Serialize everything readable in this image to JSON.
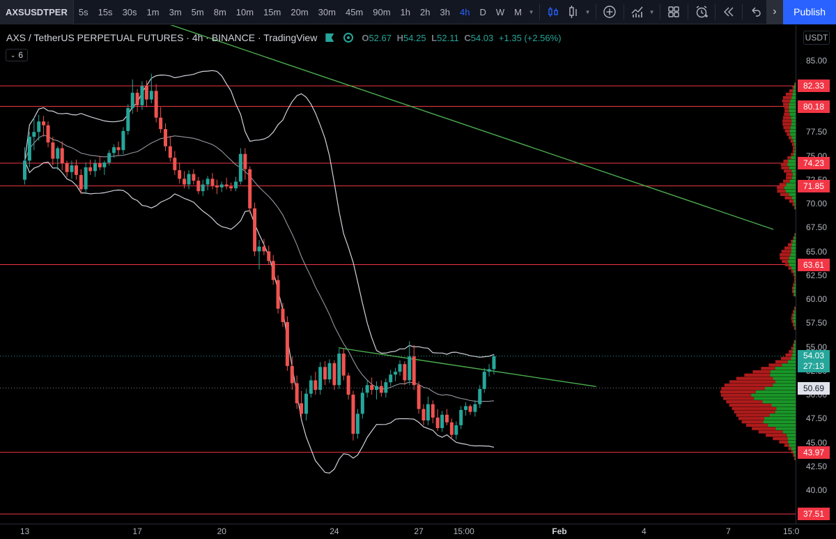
{
  "toolbar": {
    "symbol": "AXSUSDTPER",
    "intervals": [
      "5s",
      "15s",
      "30s",
      "1m",
      "3m",
      "5m",
      "8m",
      "10m",
      "15m",
      "20m",
      "30m",
      "45m",
      "90m",
      "1h",
      "2h",
      "3h",
      "4h",
      "D",
      "W",
      "M"
    ],
    "active_interval": "4h",
    "publish_label": "Publish",
    "icons": [
      "candles-icon",
      "bars-icon",
      "add-indicator-icon",
      "indicators-icon",
      "layout-grid-icon",
      "alert-clock-icon",
      "replay-icon",
      "undo-icon",
      "collapse-icon"
    ]
  },
  "legend": {
    "title": "AXS / TetherUS PERPETUAL FUTURES · 4h · BINANCE · TradingView",
    "o_label": "O",
    "o": "52.67",
    "h_label": "H",
    "h": "54.25",
    "l_label": "L",
    "l": "52.11",
    "c_label": "C",
    "c": "54.03",
    "change": "+1.35 (+2.56%)",
    "indicator_count": "6"
  },
  "price_scale": {
    "currency": "USDT",
    "ticks": [
      "85.00",
      "77.50",
      "75.00",
      "72.50",
      "70.00",
      "67.50",
      "65.00",
      "62.50",
      "60.00",
      "57.50",
      "55.00",
      "52.50",
      "50.00",
      "47.50",
      "45.00",
      "42.50",
      "40.00"
    ],
    "levels": [
      {
        "value": "82.33",
        "price": 82.33,
        "color": "#f23645"
      },
      {
        "value": "80.18",
        "price": 80.18,
        "color": "#f23645"
      },
      {
        "value": "74.23",
        "price": 74.23,
        "color": "#f23645"
      },
      {
        "value": "71.85",
        "price": 71.85,
        "color": "#f23645"
      },
      {
        "value": "63.61",
        "price": 63.61,
        "color": "#f23645"
      },
      {
        "value": "43.97",
        "price": 43.97,
        "color": "#f23645"
      },
      {
        "value": "37.51",
        "price": 37.51,
        "color": "#f23645"
      }
    ],
    "last_price": {
      "value": "54.03",
      "countdown": "27:13",
      "price": 54.03,
      "color": "#26a69a"
    },
    "poc": {
      "value": "50.69",
      "price": 50.69
    }
  },
  "time_scale": {
    "ticks": [
      {
        "label": "13",
        "day": 0,
        "bold": false
      },
      {
        "label": "17",
        "day": 4,
        "bold": false
      },
      {
        "label": "20",
        "day": 7,
        "bold": false
      },
      {
        "label": "24",
        "day": 11,
        "bold": false
      },
      {
        "label": "27",
        "day": 14,
        "bold": false
      },
      {
        "label": "15:00",
        "day": 15.6,
        "bold": false
      },
      {
        "label": "Feb",
        "day": 19,
        "bold": true
      },
      {
        "label": "4",
        "day": 22,
        "bold": false
      },
      {
        "label": "7",
        "day": 25,
        "bold": false
      },
      {
        "label": "15:0",
        "day": 26.2,
        "bold": false
      }
    ]
  },
  "colors": {
    "up": "#26a69a",
    "down": "#ef5350",
    "level": "#f23645",
    "trend": "#4caf50",
    "band": "#d1d4dc",
    "bg": "#000000"
  },
  "chart_data": {
    "type": "candlestick",
    "symbol": "AXS / TetherUS PERPETUAL FUTURES",
    "timeframe": "4h",
    "x_unit": "days since first tick label (13)",
    "ylim": [
      36.5,
      88.6
    ],
    "candles": [
      [
        0,
        72.5,
        75.9,
        72.0,
        74.5
      ],
      [
        0.17,
        74.5,
        77.5,
        73.8,
        77.0
      ],
      [
        0.33,
        77.0,
        79.0,
        75.6,
        77.5
      ],
      [
        0.5,
        77.5,
        79.3,
        76.6,
        78.6
      ],
      [
        0.67,
        78.6,
        79.2,
        77.0,
        78.2
      ],
      [
        0.83,
        78.2,
        78.6,
        75.9,
        76.4
      ],
      [
        1.0,
        76.4,
        77.0,
        74.0,
        74.7
      ],
      [
        1.17,
        74.7,
        76.0,
        73.5,
        75.8
      ],
      [
        1.33,
        75.8,
        76.5,
        73.5,
        74.2
      ],
      [
        1.5,
        74.2,
        74.5,
        72.8,
        73.3
      ],
      [
        1.67,
        73.3,
        74.5,
        72.6,
        74.0
      ],
      [
        1.83,
        74.0,
        74.6,
        72.5,
        73.0
      ],
      [
        2.0,
        73.0,
        73.6,
        71.0,
        71.5
      ],
      [
        2.17,
        71.5,
        74.3,
        71.0,
        73.8
      ],
      [
        2.33,
        73.8,
        74.6,
        73.0,
        73.4
      ],
      [
        2.5,
        73.4,
        74.6,
        72.8,
        74.2
      ],
      [
        2.67,
        74.2,
        75.0,
        73.5,
        73.8
      ],
      [
        2.83,
        73.8,
        74.5,
        73.0,
        74.3
      ],
      [
        3.0,
        74.3,
        75.6,
        74.0,
        75.3
      ],
      [
        3.17,
        75.3,
        76.2,
        74.8,
        75.9
      ],
      [
        3.33,
        75.9,
        76.5,
        75.1,
        75.6
      ],
      [
        3.5,
        75.6,
        78.0,
        75.2,
        77.6
      ],
      [
        3.67,
        77.6,
        80.4,
        77.2,
        80.0
      ],
      [
        3.83,
        80.0,
        83.0,
        79.4,
        81.6
      ],
      [
        4.0,
        81.6,
        82.0,
        79.6,
        80.3
      ],
      [
        4.17,
        80.3,
        82.8,
        79.8,
        82.3
      ],
      [
        4.33,
        82.3,
        82.9,
        80.1,
        80.9
      ],
      [
        4.5,
        80.9,
        83.6,
        80.5,
        81.8
      ],
      [
        4.67,
        81.8,
        82.5,
        78.5,
        79.0
      ],
      [
        4.83,
        79.0,
        80.1,
        77.4,
        77.8
      ],
      [
        5.0,
        77.8,
        78.4,
        75.5,
        76.0
      ],
      [
        5.17,
        76.0,
        77.1,
        74.4,
        74.8
      ],
      [
        5.33,
        74.8,
        75.5,
        73.0,
        73.5
      ],
      [
        5.5,
        73.5,
        74.3,
        72.1,
        72.6
      ],
      [
        5.67,
        72.6,
        73.4,
        71.6,
        72.0
      ],
      [
        5.83,
        72.0,
        73.5,
        71.5,
        73.1
      ],
      [
        6.0,
        73.1,
        73.6,
        72.0,
        72.4
      ],
      [
        6.17,
        72.4,
        72.8,
        71.0,
        71.3
      ],
      [
        6.33,
        71.3,
        72.5,
        70.8,
        72.0
      ],
      [
        6.5,
        72.0,
        72.9,
        71.4,
        72.6
      ],
      [
        6.67,
        72.6,
        73.2,
        71.5,
        71.9
      ],
      [
        6.83,
        71.9,
        72.5,
        71.0,
        71.7
      ],
      [
        7.0,
        71.7,
        72.3,
        71.2,
        72.0
      ],
      [
        7.17,
        72.0,
        72.7,
        71.5,
        71.8
      ],
      [
        7.33,
        71.8,
        72.2,
        71.3,
        71.6
      ],
      [
        7.5,
        71.6,
        72.8,
        71.3,
        72.3
      ],
      [
        7.67,
        72.3,
        75.8,
        72.0,
        75.2
      ],
      [
        7.83,
        75.2,
        75.8,
        72.5,
        73.6
      ],
      [
        8.0,
        73.6,
        73.9,
        69.0,
        69.5
      ],
      [
        8.17,
        69.5,
        70.1,
        64.5,
        65.0
      ],
      [
        8.33,
        65.0,
        66.2,
        63.1,
        65.5
      ],
      [
        8.5,
        65.5,
        66.3,
        64.6,
        65.0
      ],
      [
        8.67,
        65.0,
        65.6,
        63.6,
        64.0
      ],
      [
        8.83,
        64.0,
        64.6,
        61.5,
        62.0
      ],
      [
        9.0,
        62.0,
        62.5,
        58.5,
        59.0
      ],
      [
        9.17,
        59.0,
        59.6,
        57.1,
        57.6
      ],
      [
        9.33,
        57.6,
        58.2,
        52.5,
        53.0
      ],
      [
        9.5,
        53.0,
        54.0,
        50.5,
        51.2
      ],
      [
        9.67,
        51.2,
        52.0,
        48.5,
        49.1
      ],
      [
        9.83,
        49.1,
        50.4,
        47.5,
        48.0
      ],
      [
        10.0,
        48.0,
        50.6,
        47.3,
        50.1
      ],
      [
        10.17,
        50.1,
        52.0,
        49.7,
        51.5
      ],
      [
        10.33,
        51.5,
        52.4,
        50.0,
        50.5
      ],
      [
        10.5,
        50.5,
        53.4,
        50.0,
        52.9
      ],
      [
        10.67,
        52.9,
        53.5,
        51.0,
        51.6
      ],
      [
        10.83,
        51.6,
        53.7,
        51.2,
        53.3
      ],
      [
        11.0,
        53.3,
        53.6,
        50.5,
        51.0
      ],
      [
        11.17,
        51.0,
        54.8,
        50.6,
        54.3
      ],
      [
        11.33,
        54.3,
        54.8,
        51.5,
        52.0
      ],
      [
        11.5,
        52.0,
        52.3,
        49.5,
        50.0
      ],
      [
        11.67,
        50.0,
        50.4,
        45.2,
        45.9
      ],
      [
        11.83,
        45.9,
        48.5,
        45.4,
        48.0
      ],
      [
        12.0,
        48.0,
        50.7,
        47.5,
        50.2
      ],
      [
        12.17,
        50.2,
        51.5,
        49.7,
        51.0
      ],
      [
        12.33,
        51.0,
        51.8,
        50.0,
        50.5
      ],
      [
        12.5,
        50.5,
        51.4,
        49.5,
        50.9
      ],
      [
        12.67,
        50.9,
        51.5,
        49.8,
        50.2
      ],
      [
        12.83,
        50.2,
        51.7,
        49.7,
        51.3
      ],
      [
        13.0,
        51.3,
        52.6,
        50.9,
        52.1
      ],
      [
        13.17,
        52.1,
        52.8,
        51.4,
        52.4
      ],
      [
        13.33,
        52.4,
        53.6,
        52.0,
        53.2
      ],
      [
        13.5,
        53.2,
        53.5,
        51.0,
        51.5
      ],
      [
        13.67,
        51.5,
        55.6,
        51.0,
        54.0
      ],
      [
        13.83,
        54.0,
        55.2,
        50.5,
        51.0
      ],
      [
        14.0,
        51.0,
        51.4,
        48.0,
        48.5
      ],
      [
        14.17,
        48.5,
        49.0,
        46.8,
        47.3
      ],
      [
        14.33,
        47.3,
        49.8,
        46.8,
        49.0
      ],
      [
        14.5,
        49.0,
        49.4,
        47.0,
        47.6
      ],
      [
        14.67,
        47.6,
        48.5,
        46.2,
        46.5
      ],
      [
        14.83,
        46.5,
        48.3,
        46.1,
        47.9
      ],
      [
        15.0,
        47.9,
        48.5,
        46.8,
        47.1
      ],
      [
        15.17,
        47.1,
        47.5,
        45.3,
        45.8
      ],
      [
        15.33,
        45.8,
        47.2,
        45.3,
        46.8
      ],
      [
        15.5,
        46.8,
        48.8,
        46.4,
        48.4
      ],
      [
        15.67,
        48.4,
        49.2,
        47.8,
        48.8
      ],
      [
        15.83,
        48.8,
        49.0,
        47.9,
        48.2
      ],
      [
        16.0,
        48.2,
        49.4,
        47.7,
        49.0
      ],
      [
        16.17,
        49.0,
        51.0,
        48.6,
        50.6
      ],
      [
        16.33,
        50.6,
        52.8,
        50.2,
        52.4
      ],
      [
        16.5,
        52.4,
        53.2,
        51.9,
        52.67
      ],
      [
        16.67,
        52.67,
        54.25,
        52.11,
        54.03
      ]
    ],
    "bollinger": {
      "period_note": "upper, middle and lower bands shown"
    },
    "horizontal_levels": [
      82.33,
      80.18,
      74.23,
      71.85,
      63.61,
      43.97,
      37.51
    ],
    "trendlines": [
      {
        "from": {
          "day": 4.9,
          "price": 89.0
        },
        "to": {
          "day": 26.6,
          "price": 67.3
        }
      },
      {
        "from": {
          "day": 11.15,
          "price": 54.9
        },
        "to": {
          "day": 20.3,
          "price": 50.85
        }
      }
    ],
    "volume_profile_note": "visible range volume profile on right, up (green) and down (red) volume per price bucket"
  }
}
